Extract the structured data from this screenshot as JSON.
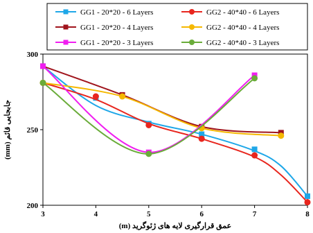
{
  "chart_data": {
    "type": "line",
    "title": "",
    "xlabel": "عمق قرارگیری لایه های ژئوگرید (m)",
    "ylabel": "جابجایی قائم (mm)",
    "xlim": [
      3,
      8
    ],
    "ylim": [
      200,
      300
    ],
    "x_ticks": [
      "3",
      "4",
      "5",
      "6",
      "7",
      "8"
    ],
    "y_ticks": [
      "200",
      "250",
      "300"
    ],
    "grid": false,
    "legend_position": "top",
    "series": [
      {
        "name": "GG1 - 20*20 - 6 Layers",
        "color": "#1ea7e8",
        "marker": "square",
        "points": [
          [
            3,
            292
          ],
          [
            4,
            271
          ],
          [
            5,
            254
          ],
          [
            6,
            247
          ],
          [
            7,
            237
          ],
          [
            8,
            206
          ]
        ],
        "curve": [
          [
            3,
            292
          ],
          [
            4,
            266
          ],
          [
            5,
            255
          ],
          [
            6,
            247
          ],
          [
            7,
            236
          ],
          [
            7.5,
            226
          ],
          [
            8,
            206
          ]
        ]
      },
      {
        "name": "GG2 - 40*40 - 6 Layers",
        "color": "#e8261e",
        "marker": "circle",
        "points": [
          [
            3,
            281
          ],
          [
            4,
            272
          ],
          [
            5,
            253
          ],
          [
            6,
            244
          ],
          [
            7,
            233
          ],
          [
            8,
            202
          ]
        ],
        "curve": [
          [
            3,
            281
          ],
          [
            4,
            270
          ],
          [
            5,
            254
          ],
          [
            6,
            244
          ],
          [
            7,
            232
          ],
          [
            7.5,
            220
          ],
          [
            8,
            202
          ]
        ]
      },
      {
        "name": "GG1 - 20*20 - 4 Layers",
        "color": "#a0141c",
        "marker": "square",
        "points": [
          [
            3,
            292
          ],
          [
            4.5,
            273
          ],
          [
            6,
            252
          ],
          [
            7.5,
            248
          ]
        ],
        "curve": [
          [
            3,
            292
          ],
          [
            4.5,
            273
          ],
          [
            6,
            252
          ],
          [
            7.5,
            248
          ]
        ]
      },
      {
        "name": "GG2 - 40*40 - 4 Layers",
        "color": "#f5b800",
        "marker": "circle",
        "points": [
          [
            3,
            281
          ],
          [
            4.5,
            272
          ],
          [
            6,
            251
          ],
          [
            7.5,
            246
          ]
        ],
        "curve": [
          [
            3,
            281
          ],
          [
            4.5,
            272
          ],
          [
            6,
            251
          ],
          [
            7.5,
            246
          ]
        ]
      },
      {
        "name": "GG1 - 20*20 - 3 Layers",
        "color": "#f01ef0",
        "marker": "square",
        "points": [
          [
            3,
            292
          ],
          [
            5,
            235
          ],
          [
            7,
            286
          ]
        ],
        "curve": [
          [
            3,
            292
          ],
          [
            5,
            235
          ],
          [
            7,
            286
          ]
        ]
      },
      {
        "name": "GG2 - 40*40 - 3 Layers",
        "color": "#6aac3a",
        "marker": "circle",
        "points": [
          [
            3,
            281
          ],
          [
            5,
            234
          ],
          [
            7,
            284
          ]
        ],
        "curve": [
          [
            3,
            281
          ],
          [
            5,
            234
          ],
          [
            7,
            284
          ]
        ]
      }
    ]
  }
}
